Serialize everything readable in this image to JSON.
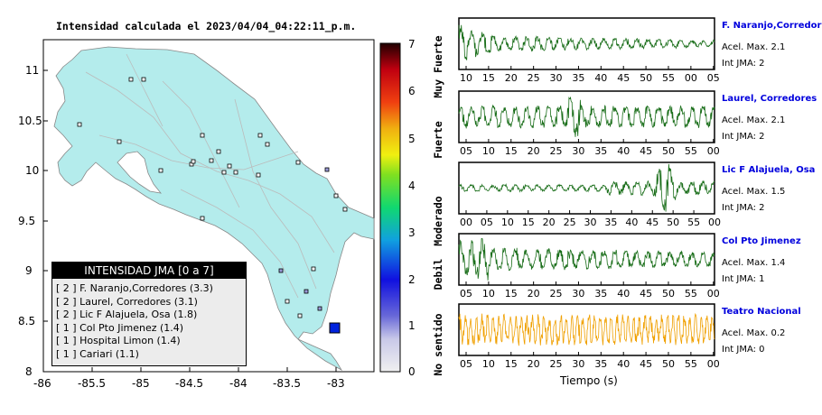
{
  "map": {
    "title": "Intensidad calculada el 2023/04/04_04:22:11_p.m.",
    "x_ticks": [
      "-86",
      "-85.5",
      "-85",
      "-84.5",
      "-84",
      "-83.5",
      "-83"
    ],
    "y_ticks": [
      "11",
      "10.5",
      "10",
      "9.5",
      "9",
      "8.5",
      "8"
    ],
    "colorbar_ticks": [
      "7",
      "6",
      "5",
      "4",
      "3",
      "2",
      "1",
      "0"
    ],
    "colorbar_labels": [
      "Muy Fuerte",
      "Fuerte",
      "Moderado",
      "Debil",
      "No sentido"
    ],
    "land_color": "#b4ecec",
    "epicenter_color": "#0022dd"
  },
  "legend": {
    "header": "INTENSIDAD JMA [0 a 7]",
    "items": [
      "[ 2 ]  F. Naranjo,Corredores (3.3)",
      "[ 2 ]  Laurel, Corredores (3.1)",
      "[ 2 ]  Lic F Alajuela, Osa (1.8)",
      "[ 1 ]  Col Pto Jimenez (1.4)",
      "[ 1 ]  Hospital Limon (1.4)",
      "[ 1 ]  Cariari (1.1)"
    ]
  },
  "traces": [
    {
      "name": "F. Naranjo,Corredores",
      "acel": "Acel. Max. 2.1",
      "jma": "Int JMA: 2",
      "color": "#1a6e1a",
      "ticks": [
        "10",
        "15",
        "20",
        "25",
        "30",
        "35",
        "40",
        "45",
        "50",
        "55",
        "00",
        "05"
      ]
    },
    {
      "name": "Laurel, Corredores",
      "acel": "Acel. Max. 2.1",
      "jma": "Int JMA: 2",
      "color": "#1a6e1a",
      "ticks": [
        "05",
        "10",
        "15",
        "20",
        "25",
        "30",
        "35",
        "40",
        "45",
        "50",
        "55",
        "00"
      ]
    },
    {
      "name": "Lic F Alajuela, Osa",
      "acel": "Acel. Max. 1.5",
      "jma": "Int JMA: 2",
      "color": "#1a6e1a",
      "ticks": [
        "00",
        "05",
        "10",
        "15",
        "20",
        "25",
        "30",
        "35",
        "40",
        "45",
        "50",
        "55",
        "00"
      ]
    },
    {
      "name": "Col Pto Jimenez",
      "acel": "Acel. Max. 1.4",
      "jma": "Int JMA: 1",
      "color": "#1a6e1a",
      "ticks": [
        "05",
        "10",
        "15",
        "20",
        "25",
        "30",
        "35",
        "40",
        "45",
        "50",
        "55",
        "00"
      ]
    },
    {
      "name": "Teatro Nacional",
      "acel": "Acel. Max. 0.2",
      "jma": "Int JMA: 0",
      "color": "#f0a000",
      "ticks": [
        "05",
        "10",
        "15",
        "20",
        "25",
        "30",
        "35",
        "40",
        "45",
        "50",
        "55",
        "00"
      ]
    }
  ],
  "xaxis_title": "Tiempo (s)",
  "chart_data": [
    {
      "type": "scatter",
      "title": "Intensidad calculada el 2023/04/04_04:22:11_p.m.",
      "xlim": [
        -86,
        -82.7
      ],
      "ylim": [
        8,
        11.3
      ],
      "legend": "bottom-left",
      "series": [
        {
          "name": "F. Naranjo,Corredores",
          "intensity": 2,
          "value": 3.3
        },
        {
          "name": "Laurel, Corredores",
          "intensity": 2,
          "value": 3.1
        },
        {
          "name": "Lic F Alajuela, Osa",
          "intensity": 2,
          "value": 1.8
        },
        {
          "name": "Col Pto Jimenez",
          "intensity": 1,
          "value": 1.4
        },
        {
          "name": "Hospital Limon",
          "intensity": 1,
          "value": 1.4
        },
        {
          "name": "Cariari",
          "intensity": 1,
          "value": 1.1
        }
      ],
      "epicenter": {
        "lon": -82.97,
        "lat": 8.43
      }
    },
    {
      "type": "line",
      "xlabel": "Tiempo (s)",
      "series": [
        {
          "name": "F. Naranjo,Corredores",
          "acel_max": 2.1,
          "int_jma": 2
        },
        {
          "name": "Laurel, Corredores",
          "acel_max": 2.1,
          "int_jma": 2
        },
        {
          "name": "Lic F Alajuela, Osa",
          "acel_max": 1.5,
          "int_jma": 2
        },
        {
          "name": "Col Pto Jimenez",
          "acel_max": 1.4,
          "int_jma": 1
        },
        {
          "name": "Teatro Nacional",
          "acel_max": 0.2,
          "int_jma": 0
        }
      ]
    }
  ]
}
